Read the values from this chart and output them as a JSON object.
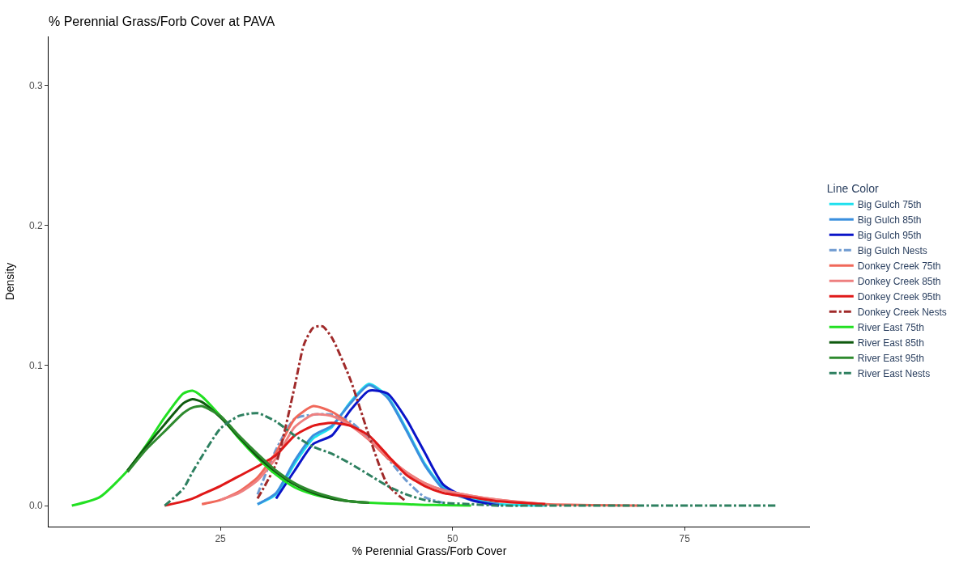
{
  "chart_data": {
    "type": "line",
    "title": "% Perennial Grass/Forb Cover at PAVA",
    "xlabel": "% Perennial Grass/Forb Cover",
    "ylabel": "Density",
    "legend_title": "Line Color",
    "xlim": [
      6.5,
      88.5
    ],
    "xticks": [
      25,
      50,
      75
    ],
    "ylim": [
      -0.015,
      0.335
    ],
    "yticks": [
      {
        "value": 0,
        "label": "0.0"
      },
      {
        "value": 0.1,
        "label": "0.1"
      },
      {
        "value": 0.2,
        "label": "0.2"
      },
      {
        "value": 0.3,
        "label": "0.3"
      }
    ],
    "legend": "right",
    "marker": "none",
    "line_style": "solid",
    "series": [
      {
        "name": "Big Gulch 75th",
        "color": "#1fe0ee",
        "x": [
          29,
          31,
          33,
          35,
          37,
          39,
          41,
          43,
          45,
          47,
          49,
          52,
          55,
          60
        ],
        "values": [
          0.001,
          0.008,
          0.03,
          0.048,
          0.056,
          0.074,
          0.087,
          0.078,
          0.055,
          0.03,
          0.013,
          0.005,
          0.001,
          0
        ]
      },
      {
        "name": "Big Gulch 85th",
        "color": "#3a8fde",
        "x": [
          29,
          31,
          33,
          35,
          37,
          39,
          41,
          43,
          45,
          47,
          49,
          52,
          55
        ],
        "values": [
          0.001,
          0.009,
          0.032,
          0.05,
          0.057,
          0.073,
          0.086,
          0.077,
          0.054,
          0.029,
          0.012,
          0.004,
          0.001
        ]
      },
      {
        "name": "Big Gulch 95th",
        "color": "#0a14c8",
        "x": [
          31,
          33,
          35,
          37,
          39,
          41,
          43,
          45,
          47,
          49,
          52,
          55
        ],
        "values": [
          0.005,
          0.025,
          0.044,
          0.05,
          0.068,
          0.082,
          0.08,
          0.062,
          0.038,
          0.015,
          0.004,
          0
        ]
      },
      {
        "name": "Big Gulch Nests",
        "color": "#6f9bd1",
        "line_style": "dashed",
        "x": [
          29,
          31,
          33,
          35,
          37,
          39,
          41,
          43,
          45,
          47,
          49
        ],
        "values": [
          0.008,
          0.04,
          0.062,
          0.065,
          0.065,
          0.06,
          0.048,
          0.034,
          0.018,
          0.006,
          0.002
        ]
      },
      {
        "name": "Donkey Creek 75th",
        "color": "#f0685a",
        "x": [
          23,
          25,
          27,
          29,
          31,
          33,
          35,
          37,
          39,
          41,
          43,
          45,
          47,
          49,
          52,
          55,
          60,
          70
        ],
        "values": [
          0.001,
          0.004,
          0.01,
          0.02,
          0.038,
          0.062,
          0.071,
          0.067,
          0.058,
          0.047,
          0.034,
          0.024,
          0.016,
          0.011,
          0.007,
          0.004,
          0.001,
          0
        ]
      },
      {
        "name": "Donkey Creek 85th",
        "color": "#ee8080",
        "x": [
          25,
          27,
          29,
          31,
          33,
          35,
          37,
          39,
          41,
          43,
          45,
          47,
          49,
          52,
          55,
          60
        ],
        "values": [
          0.004,
          0.009,
          0.018,
          0.034,
          0.056,
          0.065,
          0.064,
          0.057,
          0.047,
          0.035,
          0.024,
          0.016,
          0.011,
          0.007,
          0.004,
          0.001
        ]
      },
      {
        "name": "Donkey Creek 95th",
        "color": "#e01818",
        "x": [
          19,
          21,
          22,
          23,
          25,
          27,
          29,
          31,
          33,
          35,
          37,
          39,
          41,
          43,
          45,
          47,
          49,
          52,
          55,
          60
        ],
        "values": [
          0,
          0.003,
          0.005,
          0.008,
          0.014,
          0.021,
          0.028,
          0.036,
          0.05,
          0.057,
          0.059,
          0.057,
          0.05,
          0.036,
          0.022,
          0.014,
          0.009,
          0.006,
          0.003,
          0.001
        ]
      },
      {
        "name": "Donkey Creek Nests",
        "color": "#a02a2a",
        "line_style": "dashed",
        "x": [
          29,
          31,
          33,
          34,
          35,
          36,
          37,
          39,
          41,
          43,
          45
        ],
        "values": [
          0.005,
          0.03,
          0.085,
          0.115,
          0.127,
          0.128,
          0.12,
          0.09,
          0.05,
          0.015,
          0.003
        ]
      },
      {
        "name": "River East 75th",
        "color": "#22e022",
        "x": [
          9,
          12,
          15,
          17,
          19,
          21,
          22,
          23,
          25,
          27,
          29,
          31,
          33,
          35,
          37,
          39,
          41,
          43,
          45,
          47,
          49,
          52
        ],
        "values": [
          0,
          0.006,
          0.025,
          0.043,
          0.063,
          0.08,
          0.082,
          0.078,
          0.064,
          0.048,
          0.034,
          0.022,
          0.013,
          0.008,
          0.005,
          0.003,
          0.002,
          0.0015,
          0.001,
          0.0005,
          0.0003,
          0
        ]
      },
      {
        "name": "River East 85th",
        "color": "#0e5a0e",
        "x": [
          15,
          17,
          19,
          21,
          22,
          23,
          25,
          27,
          29,
          31,
          33,
          35,
          37,
          39,
          41
        ],
        "values": [
          0.025,
          0.042,
          0.058,
          0.073,
          0.076,
          0.074,
          0.063,
          0.049,
          0.035,
          0.024,
          0.015,
          0.009,
          0.005,
          0.003,
          0.002
        ]
      },
      {
        "name": "River East 95th",
        "color": "#2e8a2e",
        "x": [
          15,
          17,
          19,
          21,
          22,
          23,
          25,
          27,
          29,
          31,
          33,
          35,
          37,
          39,
          41
        ],
        "values": [
          0.024,
          0.04,
          0.053,
          0.066,
          0.07,
          0.071,
          0.064,
          0.05,
          0.037,
          0.025,
          0.016,
          0.01,
          0.006,
          0.003,
          0.002
        ]
      },
      {
        "name": "River East Nests",
        "color": "#2e8060",
        "line_style": "dashed",
        "x": [
          19,
          21,
          22,
          23,
          25,
          27,
          29,
          31,
          33,
          35,
          37,
          39,
          41,
          43,
          45,
          47,
          49,
          52,
          55,
          60,
          70,
          85
        ],
        "values": [
          0,
          0.012,
          0.024,
          0.035,
          0.055,
          0.064,
          0.066,
          0.06,
          0.05,
          0.042,
          0.037,
          0.03,
          0.022,
          0.014,
          0.008,
          0.004,
          0.002,
          0.001,
          0,
          0,
          0,
          0
        ]
      }
    ]
  }
}
